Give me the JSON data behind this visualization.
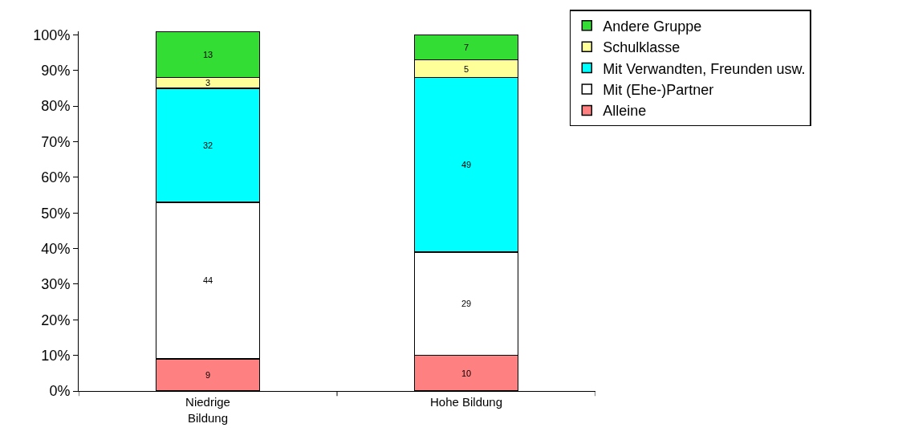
{
  "chart_data": {
    "type": "bar",
    "stacked": true,
    "categories": [
      "Niedrige Bildung",
      "Hohe Bildung"
    ],
    "series": [
      {
        "name": "Alleine",
        "color": "#ff8080",
        "values": [
          9,
          10
        ]
      },
      {
        "name": "Mit (Ehe-)Partner",
        "color": "#ffffff",
        "values": [
          44,
          29
        ]
      },
      {
        "name": "Mit Verwandten, Freunden usw.",
        "color": "#00ffff",
        "values": [
          32,
          49
        ]
      },
      {
        "name": "Schulklasse",
        "color": "#ffff99",
        "values": [
          3,
          5
        ]
      },
      {
        "name": "Andere Gruppe",
        "color": "#33dd33",
        "values": [
          13,
          7
        ]
      }
    ],
    "ylim": [
      0,
      101
    ],
    "yticks": [
      {
        "value": 0,
        "label": "0%"
      },
      {
        "value": 10,
        "label": "10%"
      },
      {
        "value": 20,
        "label": "20%"
      },
      {
        "value": 30,
        "label": "30%"
      },
      {
        "value": 40,
        "label": "40%"
      },
      {
        "value": 50,
        "label": "50%"
      },
      {
        "value": 60,
        "label": "60%"
      },
      {
        "value": 70,
        "label": "70%"
      },
      {
        "value": 80,
        "label": "80%"
      },
      {
        "value": 90,
        "label": "90%"
      },
      {
        "value": 100,
        "label": "100%"
      }
    ],
    "data_labels": true,
    "grid": false,
    "legend": "top right"
  }
}
